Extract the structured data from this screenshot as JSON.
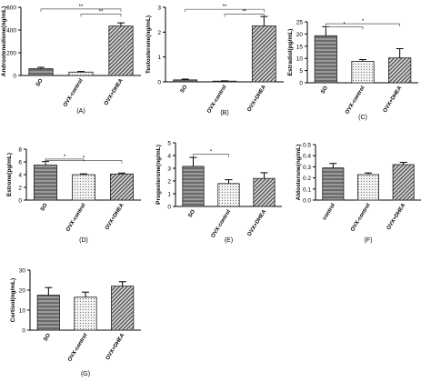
{
  "colors": {
    "axis": "#000000",
    "bar_stroke": "#222222",
    "fill_light": "#f2f2f2",
    "stripe_dark": "#6a6a6a",
    "stripe_mid": "#555555",
    "dots": "#555555"
  },
  "chart_data": [
    {
      "type": "bar",
      "panel_label": "(A)",
      "ylabel": "Androstenedione(ng/mL)",
      "ylim": [
        0,
        600
      ],
      "yticks": [
        0,
        200,
        400,
        600
      ],
      "categories": [
        "SO",
        "OVX-control",
        "OVX+DHEA"
      ],
      "values": [
        60,
        30,
        435
      ],
      "errors": [
        12,
        5,
        28
      ],
      "fills": [
        "hstripe",
        "dots",
        "diag"
      ],
      "significance": [
        {
          "from": 0,
          "to": 2,
          "label": "**",
          "level": 585
        },
        {
          "from": 1,
          "to": 2,
          "label": "**",
          "level": 540
        }
      ]
    },
    {
      "type": "bar",
      "panel_label": "(B)",
      "ylabel": "Testosterone(ng/mL)",
      "ylim": [
        0,
        3
      ],
      "yticks": [
        0,
        1,
        2,
        3
      ],
      "categories": [
        "SO",
        "OVX-control",
        "OVX+DHEA"
      ],
      "values": [
        0.08,
        0.03,
        2.25
      ],
      "errors": [
        0.03,
        0.01,
        0.38
      ],
      "fills": [
        "hstripe",
        "dots",
        "diag"
      ],
      "significance": [
        {
          "from": 0,
          "to": 2,
          "label": "**",
          "level": 2.92
        },
        {
          "from": 1,
          "to": 2,
          "label": "**",
          "level": 2.72
        }
      ]
    },
    {
      "type": "bar",
      "panel_label": "(C)",
      "ylabel": "Estradiol(pg/mL)",
      "ylim": [
        0,
        25
      ],
      "yticks": [
        0,
        5,
        10,
        15,
        20,
        25
      ],
      "categories": [
        "SO",
        "OVX-control",
        "OVX+DHEA"
      ],
      "values": [
        19.3,
        8.8,
        10.2
      ],
      "errors": [
        3.7,
        0.7,
        3.8
      ],
      "fills": [
        "hstripe",
        "dots",
        "diag"
      ],
      "significance": [
        {
          "from": 0,
          "to": 2,
          "label": "*",
          "level": 24.2
        },
        {
          "from": 0,
          "to": 1,
          "label": "*",
          "level": 23.0
        }
      ]
    },
    {
      "type": "bar",
      "panel_label": "(D)",
      "ylabel": "Estrone(pg/mL)",
      "ylim": [
        0,
        8
      ],
      "yticks": [
        0,
        2,
        4,
        6,
        8
      ],
      "categories": [
        "SO",
        "OVX-control",
        "OVX+DHEA"
      ],
      "values": [
        5.5,
        4.0,
        4.1
      ],
      "errors": [
        0.55,
        0.12,
        0.15
      ],
      "fills": [
        "hstripe",
        "dots",
        "diag"
      ],
      "significance": [
        {
          "from": 0,
          "to": 1,
          "label": "*",
          "level": 6.45
        },
        {
          "from": 0,
          "to": 2,
          "label": "*",
          "level": 6.2
        }
      ]
    },
    {
      "type": "bar",
      "panel_label": "(E)",
      "ylabel": "Progesterone(ng/mL)",
      "ylim": [
        0,
        5
      ],
      "yticks": [
        0,
        1,
        2,
        3,
        4,
        5
      ],
      "categories": [
        "SO",
        "OVX-control",
        "OVX+DHEA"
      ],
      "values": [
        3.15,
        1.8,
        2.2
      ],
      "errors": [
        0.7,
        0.3,
        0.45
      ],
      "fills": [
        "hstripe",
        "dots",
        "diag"
      ],
      "significance": [
        {
          "from": 0,
          "to": 1,
          "label": "*",
          "level": 4.1
        }
      ]
    },
    {
      "type": "bar",
      "panel_label": "(F)",
      "ylabel": "Aldosterone(ng/mL)",
      "ylim": [
        0,
        0.5
      ],
      "yticks": [
        0.0,
        0.1,
        0.2,
        0.3,
        0.4,
        0.5
      ],
      "ytick_decimals": 1,
      "categories": [
        "control",
        "OVX-control",
        "OVX+DHEA"
      ],
      "values": [
        0.29,
        0.23,
        0.32
      ],
      "errors": [
        0.04,
        0.015,
        0.02
      ],
      "fills": [
        "hstripe",
        "dots",
        "diag"
      ],
      "significance": []
    },
    {
      "type": "bar",
      "panel_label": "(G)",
      "ylabel": "Cortisol(ng/mL)",
      "ylim": [
        0,
        30
      ],
      "yticks": [
        0,
        10,
        20,
        30
      ],
      "categories": [
        "SO",
        "OVX-control",
        "OVX+DHEA"
      ],
      "values": [
        17.5,
        16.5,
        22
      ],
      "errors": [
        3.8,
        2.5,
        2.2
      ],
      "fills": [
        "hstripe",
        "dots",
        "diag"
      ],
      "significance": []
    }
  ]
}
